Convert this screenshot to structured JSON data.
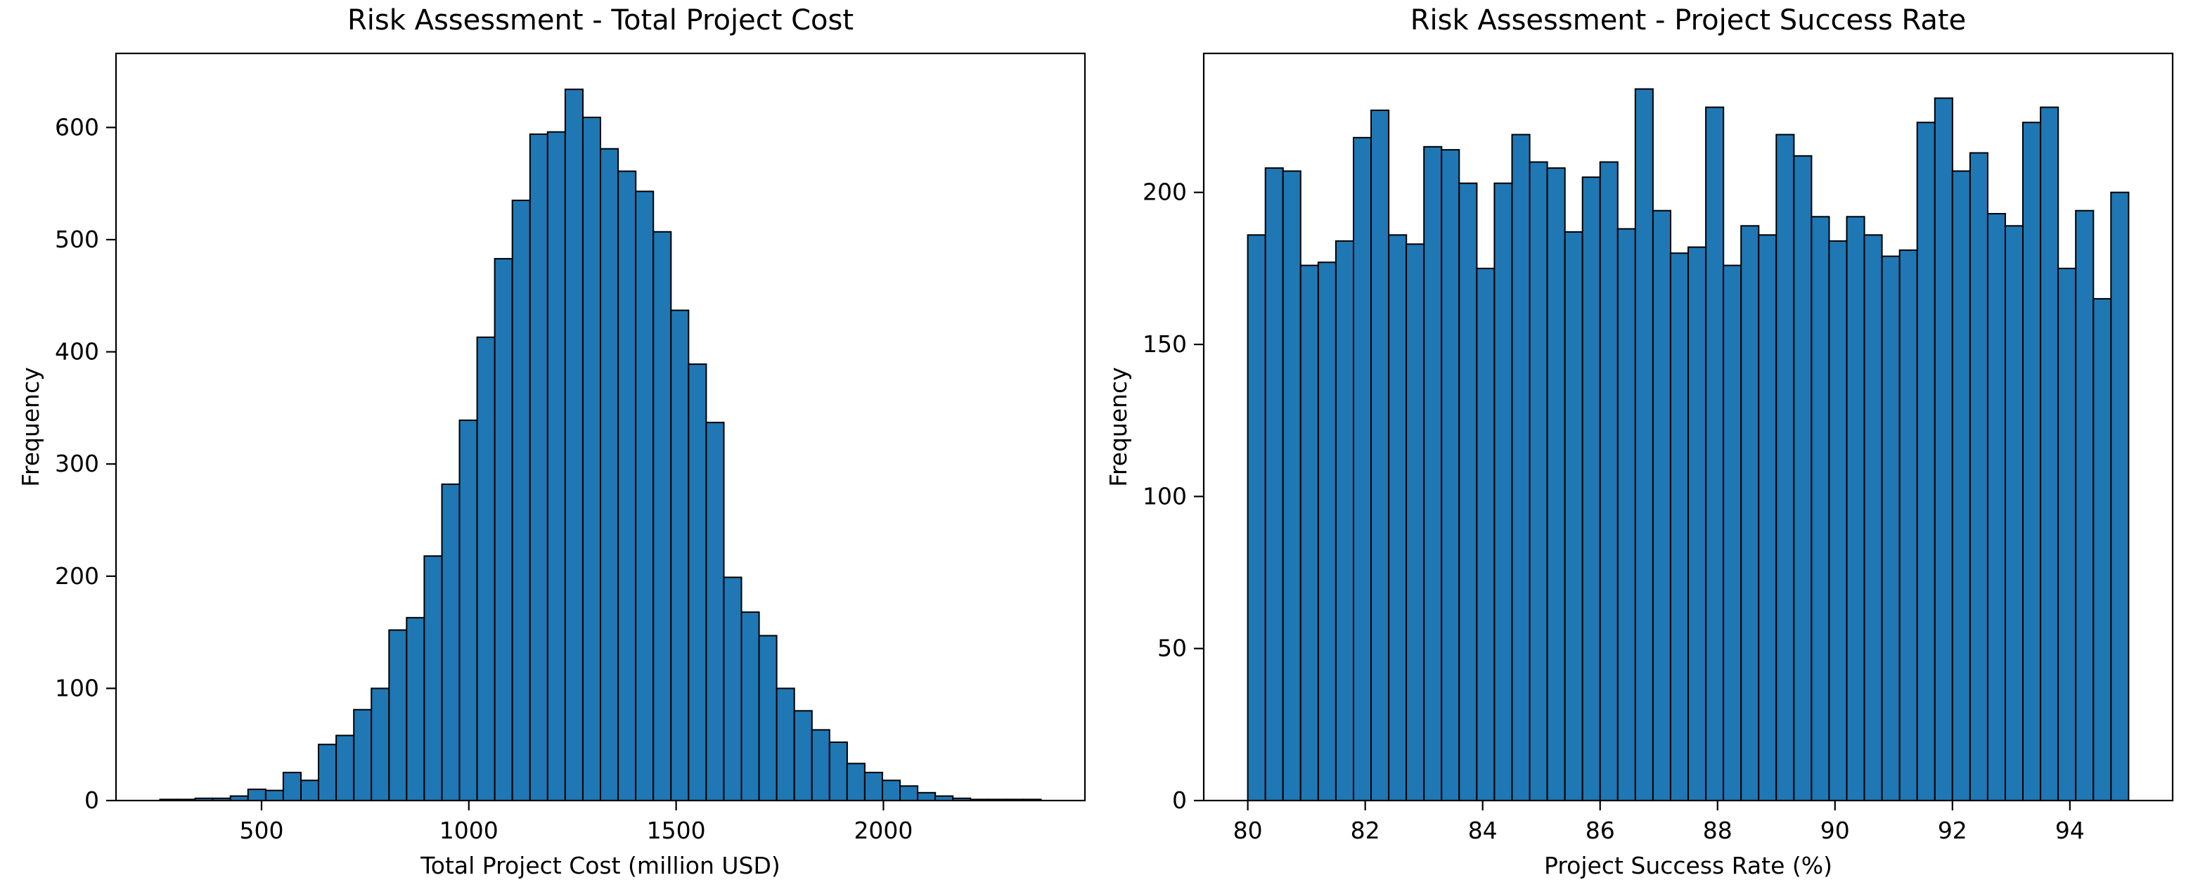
{
  "figure": {
    "background_color": "#ffffff",
    "bar_fill_color": "#1f77b4",
    "bar_edge_color": "#000000",
    "spine_color": "#000000",
    "text_color": "#000000"
  },
  "chart_data": [
    {
      "type": "bar",
      "subtype": "histogram",
      "title": "Risk Assessment - Total Project Cost",
      "xlabel": "Total Project Cost (million USD)",
      "ylabel": "Frequency",
      "bin_start": 255,
      "bin_width": 42.5,
      "values": [
        1,
        1,
        2,
        2,
        4,
        10,
        9,
        25,
        18,
        50,
        58,
        81,
        100,
        152,
        163,
        218,
        282,
        339,
        413,
        483,
        535,
        594,
        596,
        634,
        609,
        581,
        561,
        543,
        507,
        437,
        389,
        337,
        199,
        168,
        147,
        100,
        80,
        63,
        52,
        33,
        25,
        18,
        13,
        7,
        4,
        2,
        1,
        1,
        1,
        1
      ],
      "xlim": [
        149,
        2486
      ],
      "ylim": [
        0,
        666
      ],
      "xticks": [
        500,
        1000,
        1500,
        2000
      ],
      "yticks": [
        0,
        100,
        200,
        300,
        400,
        500,
        600
      ],
      "grid": false,
      "legend": null
    },
    {
      "type": "bar",
      "subtype": "histogram",
      "title": "Risk Assessment - Project Success Rate",
      "xlabel": "Project Success Rate (%)",
      "ylabel": "Frequency",
      "bin_start": 80,
      "bin_width": 0.3,
      "values": [
        186,
        208,
        207,
        176,
        177,
        184,
        218,
        227,
        186,
        183,
        215,
        214,
        203,
        175,
        203,
        219,
        210,
        208,
        187,
        205,
        210,
        188,
        234,
        194,
        180,
        182,
        228,
        176,
        189,
        186,
        219,
        212,
        192,
        184,
        192,
        186,
        179,
        181,
        223,
        231,
        207,
        213,
        193,
        189,
        223,
        228,
        175,
        194,
        165,
        200
      ],
      "xlim": [
        79.25,
        95.75
      ],
      "ylim": [
        0,
        245.7
      ],
      "xticks": [
        80,
        82,
        84,
        86,
        88,
        90,
        92,
        94
      ],
      "yticks": [
        0,
        50,
        100,
        150,
        200
      ],
      "grid": false,
      "legend": null
    }
  ]
}
